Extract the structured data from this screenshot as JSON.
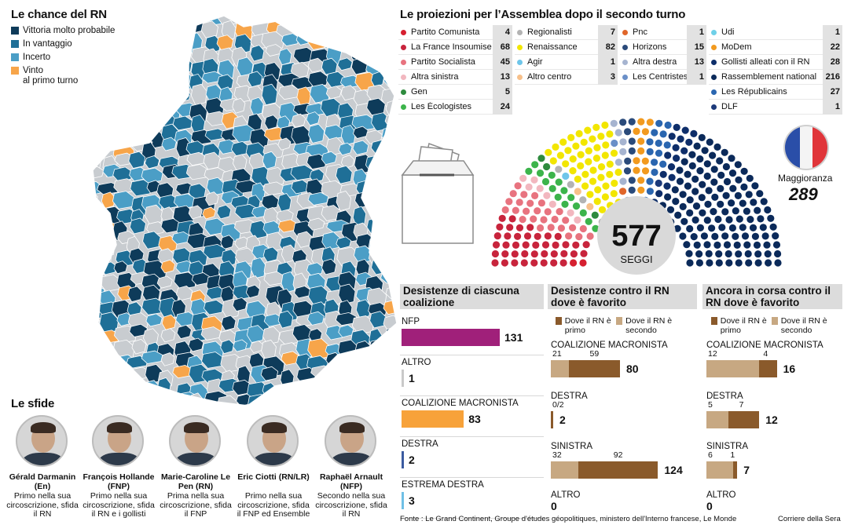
{
  "map": {
    "title": "Le chance del RN",
    "legend": [
      {
        "label": "Vittoria molto probabile",
        "color": "#0e3b5a"
      },
      {
        "label": "In vantaggio",
        "color": "#1f6f97"
      },
      {
        "label": "Incerto",
        "color": "#4b9ec6"
      },
      {
        "label": "Vinto",
        "label2": "al primo turno",
        "color": "#f7a54a"
      }
    ]
  },
  "projections": {
    "title": "Le proiezioni per l’Assemblea dopo il secondo turno",
    "columns": [
      [
        {
          "name": "Partito Comunista",
          "seats": "4",
          "color": "#d62030"
        },
        {
          "name": "La France Insoumise",
          "seats": "68",
          "color": "#c8243c"
        },
        {
          "name": "Partito Socialista",
          "seats": "45",
          "color": "#e8737f"
        },
        {
          "name": "Altra sinistra",
          "seats": "13",
          "color": "#f2b7bf"
        },
        {
          "name": "Gen",
          "seats": "5",
          "color": "#2e8b3e"
        },
        {
          "name": "Les Écologistes",
          "seats": "24",
          "color": "#3cb44b"
        }
      ],
      [
        {
          "name": "Regionalisti",
          "seats": "7",
          "color": "#b3b3b3"
        },
        {
          "name": "Renaissance",
          "seats": "82",
          "color": "#f2e600"
        },
        {
          "name": "Agir",
          "seats": "1",
          "color": "#6ec6ea"
        },
        {
          "name": "Altro centro",
          "seats": "3",
          "color": "#f7c08a"
        }
      ],
      [
        {
          "name": "Pnc",
          "seats": "1",
          "color": "#e0662a"
        },
        {
          "name": "Horizons",
          "seats": "15",
          "color": "#2a4a7a"
        },
        {
          "name": "Altra destra",
          "seats": "13",
          "color": "#a6b4d0"
        },
        {
          "name": "Les Centristes",
          "seats": "1",
          "color": "#6a8fc8"
        }
      ],
      [
        {
          "name": "Udi",
          "seats": "1",
          "color": "#6fd0e8"
        },
        {
          "name": "MoDem",
          "seats": "22",
          "color": "#f29a1f"
        },
        {
          "name": "Gollisti alleati con il RN",
          "seats": "28",
          "color": "#0e2e6a"
        },
        {
          "name": "Rassemblement national",
          "seats": "216",
          "color": "#0b2a5a"
        },
        {
          "name": "Les Républicains",
          "seats": "27",
          "color": "#2a66b0"
        },
        {
          "name": "DLF",
          "seats": "1",
          "color": "#1c3a7a"
        }
      ]
    ],
    "total": "577",
    "total_label": "SEGGI",
    "majority_label": "Maggioranza",
    "majority": "289"
  },
  "chart_data": [
    {
      "type": "bar",
      "title": "Desistenze di ciascuna coalizione",
      "categories": [
        "NFP",
        "ALTRO",
        "COALIZIONE MACRONISTA",
        "DESTRA",
        "ESTREMA DESTRA"
      ],
      "values": [
        131,
        1,
        83,
        2,
        3
      ],
      "colors": [
        "#a0207a",
        "#c9c9c9",
        "#f7a23a",
        "#3b5ba0",
        "#6fc0e6"
      ]
    },
    {
      "type": "bar",
      "title": "Desistenze contro il RN dove è favorito",
      "series_names": [
        "Dove il RN è primo",
        "Dove il RN è secondo"
      ],
      "categories": [
        "COALIZIONE MACRONISTA",
        "DESTRA",
        "SINISTRA",
        "ALTRO"
      ],
      "secondo": [
        21,
        0,
        32,
        0
      ],
      "primo": [
        59,
        2,
        92,
        0
      ],
      "secondo_labels": [
        "21",
        "0/2",
        "32",
        ""
      ],
      "primo_labels": [
        "59",
        "",
        "92",
        ""
      ],
      "totals": [
        80,
        2,
        124,
        0
      ]
    },
    {
      "type": "bar",
      "title": "Ancora in corsa contro il RN dove è favorito",
      "series_names": [
        "Dove il RN è primo",
        "Dove il RN è secondo"
      ],
      "categories": [
        "COALIZIONE MACRONISTA",
        "DESTRA",
        "SINISTRA",
        "ALTRO"
      ],
      "secondo": [
        12,
        5,
        6,
        0
      ],
      "primo": [
        4,
        7,
        1,
        0
      ],
      "totals": [
        16,
        12,
        7,
        0
      ]
    }
  ],
  "panels": {
    "p1_title": "Desistenze di ciascuna coalizione",
    "p2_title": "Desistenze contro il RN dove è favorito",
    "p3_title": "Ancora in corsa contro il RN dove è favorito",
    "legend_primo": "Dove il RN è primo",
    "legend_secondo": "Dove il RN è secondo",
    "color_primo": "#8a5a2b",
    "color_secondo": "#c7a882"
  },
  "sfide": {
    "title": "Le sfide",
    "people": [
      {
        "name": "Gérald Darmanin (En)",
        "desc": "Primo nella sua circoscrizione, sfida il RN"
      },
      {
        "name": "François Hollande (FNP)",
        "desc": "Primo nella sua circoscrizione, sfida il RN e i gollisti"
      },
      {
        "name": "Marie-Caroline Le Pen (RN)",
        "desc": "Prima nella sua circoscrizione, sfida il FNP"
      },
      {
        "name": "Eric Ciotti (RN/LR)",
        "desc": "Primo nella sua circoscrizione, sfida il FNP ed Ensemble"
      },
      {
        "name": "Raphaël Arnault (NFP)",
        "desc": "Secondo nella sua circoscrizione, sfida il RN"
      }
    ]
  },
  "footer": {
    "source": "Fonte : Le Grand Continent, Groupe d'études géopolitiques, ministero dell'Interno francese, Le Monde",
    "credit": "Corriere della Sera"
  }
}
